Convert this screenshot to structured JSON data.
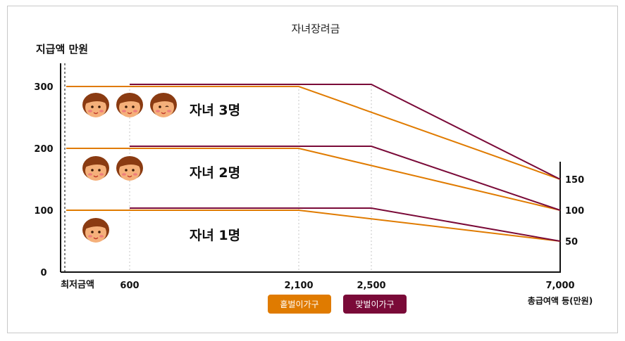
{
  "chart_data": {
    "type": "line",
    "title": "자녀장려금",
    "ylabel": "지급액 만원",
    "xlabel": "총급여액 등(만원)",
    "x_ticks": [
      {
        "value": "min",
        "label": "최저금액"
      },
      {
        "value": 600,
        "label": "600"
      },
      {
        "value": 2100,
        "label": "2,100"
      },
      {
        "value": 2500,
        "label": "2,500"
      },
      {
        "value": 7000,
        "label": "7,000"
      }
    ],
    "y_ticks": [
      0,
      100,
      200,
      300
    ],
    "right_ticks": [
      150,
      100,
      50
    ],
    "ylim": [
      0,
      340
    ],
    "grid": "dotted vertical at x ticks",
    "colors": {
      "single_income": "#e07b00",
      "dual_income": "#7a0a38"
    },
    "legend": [
      {
        "name": "홑벌이가구",
        "color": "#e07b00"
      },
      {
        "name": "맞벌이가구",
        "color": "#7a0a38"
      }
    ],
    "groups": [
      {
        "label": "자녀 3명",
        "children": 3,
        "max": 300,
        "end": 150
      },
      {
        "label": "자녀 2명",
        "children": 2,
        "max": 200,
        "end": 100
      },
      {
        "label": "자녀 1명",
        "children": 1,
        "max": 100,
        "end": 50
      }
    ],
    "series": [
      {
        "name": "홑벌이가구",
        "group": "자녀 3명",
        "points": [
          [
            "min",
            300
          ],
          [
            2100,
            300
          ],
          [
            7000,
            150
          ]
        ]
      },
      {
        "name": "맞벌이가구",
        "group": "자녀 3명",
        "points": [
          [
            600,
            300
          ],
          [
            2500,
            300
          ],
          [
            7000,
            150
          ]
        ]
      },
      {
        "name": "홑벌이가구",
        "group": "자녀 2명",
        "points": [
          [
            "min",
            200
          ],
          [
            2100,
            200
          ],
          [
            7000,
            100
          ]
        ]
      },
      {
        "name": "맞벌이가구",
        "group": "자녀 2명",
        "points": [
          [
            600,
            200
          ],
          [
            2500,
            200
          ],
          [
            7000,
            100
          ]
        ]
      },
      {
        "name": "홑벌이가구",
        "group": "자녀 1명",
        "points": [
          [
            "min",
            100
          ],
          [
            2100,
            100
          ],
          [
            7000,
            50
          ]
        ]
      },
      {
        "name": "맞벌이가구",
        "group": "자녀 1명",
        "points": [
          [
            600,
            100
          ],
          [
            2500,
            100
          ],
          [
            7000,
            50
          ]
        ]
      }
    ]
  }
}
